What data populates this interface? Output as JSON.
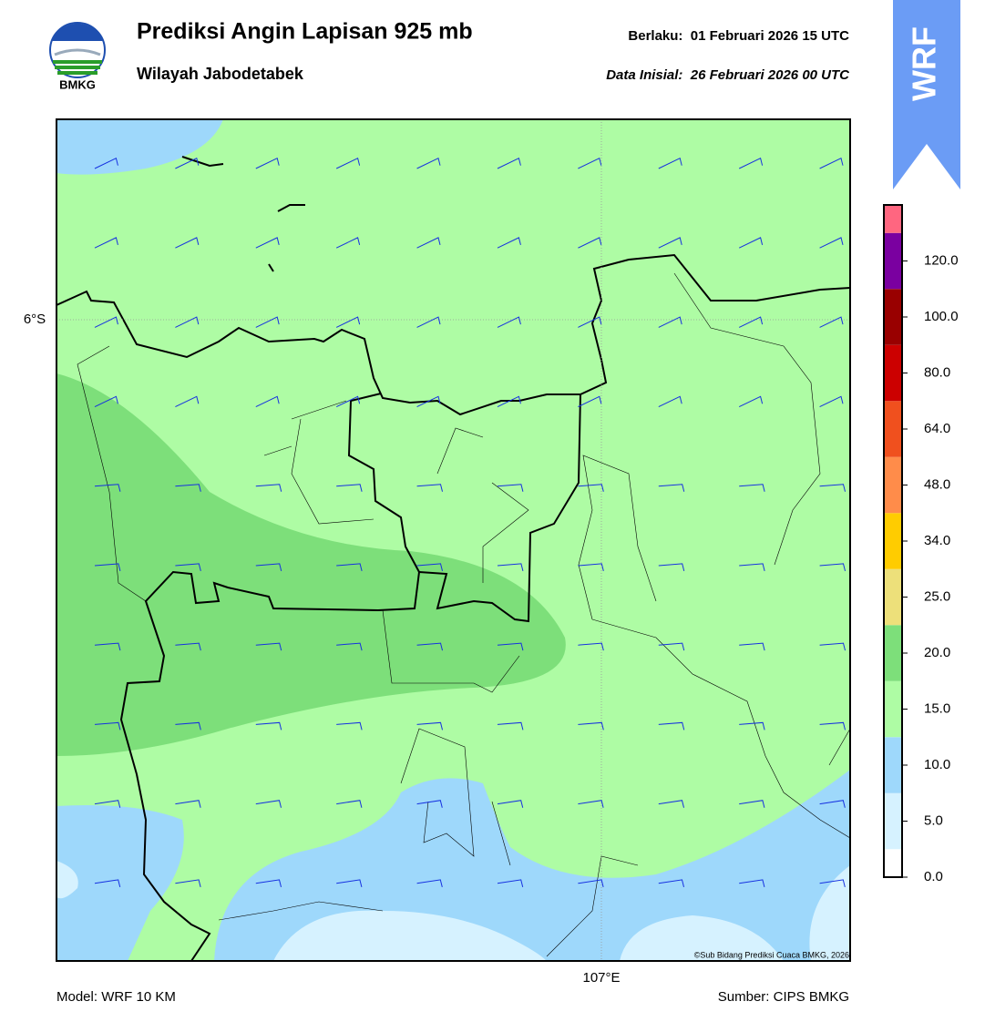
{
  "header": {
    "title": "Prediksi Angin Lapisan 925 mb",
    "subtitle": "Wilayah Jabodetabek",
    "valid": "Berlaku:  01 Februari 2026 15 UTC",
    "init": "Data Inisial:  26 Februari 2026 00 UTC",
    "logo_text": "BMKG",
    "badge": "WRF"
  },
  "map": {
    "lat_label": "6°S",
    "lon_label": "107°E",
    "copyright": "©Sub Bidang Prediksi Cuaca BMKG, 2026"
  },
  "colorbar": {
    "colors": [
      "#ffffff",
      "#d6f2ff",
      "#9ed8fb",
      "#aefca4",
      "#7ddf7a",
      "#ede07a",
      "#ffcc00",
      "#ff8c4a",
      "#f0501e",
      "#cc0000",
      "#990000",
      "#7a00a0",
      "#ff6680"
    ],
    "ticks": [
      {
        "value": 0,
        "label": "0.0"
      },
      {
        "value": 5,
        "label": "5.0"
      },
      {
        "value": 10,
        "label": "10.0"
      },
      {
        "value": 15,
        "label": "15.0"
      },
      {
        "value": 20,
        "label": "20.0"
      },
      {
        "value": 25,
        "label": "25.0"
      },
      {
        "value": 34,
        "label": "34.0"
      },
      {
        "value": 48,
        "label": "48.0"
      },
      {
        "value": 64,
        "label": "64.0"
      },
      {
        "value": 80,
        "label": "80.0"
      },
      {
        "value": 100,
        "label": "100.0"
      },
      {
        "value": 120,
        "label": "120.0"
      }
    ]
  },
  "footer": {
    "model": "Model: WRF 10 KM",
    "source": "Sumber: CIPS BMKG"
  }
}
